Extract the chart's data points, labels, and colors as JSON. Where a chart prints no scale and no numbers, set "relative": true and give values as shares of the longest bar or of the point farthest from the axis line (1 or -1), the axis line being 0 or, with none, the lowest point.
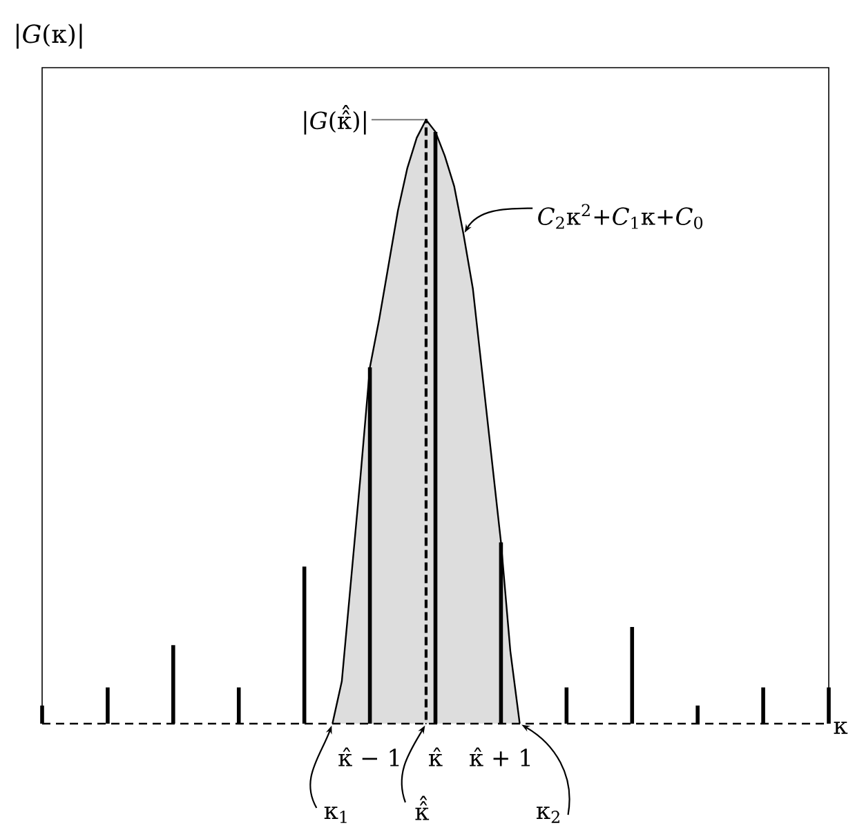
{
  "chart_data": {
    "type": "bar",
    "relative": true,
    "xlabel": "κ",
    "ylabel": "|*G*(κ)|",
    "categories": [
      null,
      null,
      null,
      null,
      null,
      null,
      null,
      null,
      null,
      null,
      null,
      null,
      null,
      null,
      null,
      null,
      null,
      null,
      null,
      null,
      null,
      null,
      null,
      null,
      null,
      null,
      null,
      null,
      null,
      null,
      null,
      null,
      null,
      null,
      null,
      "κ̂ − 1",
      null,
      null,
      null,
      null,
      null,
      null,
      "κ̂",
      null,
      null,
      null,
      null,
      null,
      null,
      "κ̂ + 1",
      null,
      null,
      null,
      null,
      null,
      null,
      null,
      null,
      null,
      null,
      null,
      null,
      null,
      null,
      null,
      null,
      null,
      null,
      null,
      null,
      null,
      null,
      null,
      null,
      null,
      null,
      null,
      null,
      null,
      null,
      null,
      null,
      null,
      null,
      null
    ],
    "series": [
      {
        "type": "area",
        "color": "#dddddd",
        "values": [
          null,
          null,
          null,
          null,
          null,
          null,
          null,
          null,
          null,
          null,
          null,
          null,
          null,
          null,
          null,
          null,
          null,
          null,
          null,
          null,
          null,
          null,
          null,
          null,
          null,
          null,
          null,
          null,
          null,
          null,
          null,
          0,
          0.07,
          0.24,
          0.41,
          0.59,
          0.67,
          0.76,
          0.85,
          0.92,
          0.97,
          1.0,
          0.98,
          0.94,
          0.89,
          0.81,
          0.72,
          0.58,
          0.44,
          0.3,
          0.12,
          0,
          null,
          null,
          null,
          null,
          null,
          null,
          null,
          null,
          null,
          null,
          null,
          null,
          null,
          null,
          null,
          null,
          null,
          null,
          null,
          null,
          null,
          null,
          null,
          null,
          null,
          null,
          null,
          null,
          null,
          null,
          null,
          null,
          null
        ]
      },
      {
        "color": "#000000",
        "values": [
          0.03,
          null,
          null,
          null,
          null,
          null,
          null,
          0.06,
          null,
          null,
          null,
          null,
          null,
          null,
          0.13,
          null,
          null,
          null,
          null,
          null,
          null,
          0.06,
          null,
          null,
          null,
          null,
          null,
          null,
          0.26,
          null,
          null,
          null,
          null,
          null,
          null,
          0.59,
          null,
          null,
          null,
          null,
          null,
          null,
          0.98,
          null,
          null,
          null,
          null,
          null,
          null,
          0.3,
          null,
          null,
          null,
          null,
          null,
          null,
          0.06,
          null,
          null,
          null,
          null,
          null,
          null,
          0.16,
          null,
          null,
          null,
          null,
          null,
          null,
          0.03,
          null,
          null,
          null,
          null,
          null,
          null,
          0.06,
          null,
          null,
          null,
          null,
          null,
          null,
          0.06
        ]
      },
      {
        "color": "#000000",
        "line_style": "dashed",
        "values": [
          null,
          null,
          null,
          null,
          null,
          null,
          null,
          null,
          null,
          null,
          null,
          null,
          null,
          null,
          null,
          null,
          null,
          null,
          null,
          null,
          null,
          null,
          null,
          null,
          null,
          null,
          null,
          null,
          null,
          null,
          null,
          null,
          null,
          null,
          null,
          null,
          null,
          null,
          null,
          null,
          null,
          1.0,
          null,
          null,
          null,
          null,
          null,
          null,
          null,
          null,
          null,
          null,
          null,
          null,
          null,
          null,
          null,
          null,
          null,
          null,
          null,
          null,
          null,
          null,
          null,
          null,
          null,
          null,
          null,
          null,
          null,
          null,
          null,
          null,
          null,
          null,
          null,
          null,
          null,
          null,
          null,
          null,
          null,
          null,
          null
        ]
      }
    ],
    "annotations": [
      "|*G*(κ̂̂)|",
      "*C*$_{2}$κ$^{2}$+*C*$_{1}$κ+*C*$_{0}$",
      "κ$_{1}$",
      "κ̂̂",
      "κ$_{2}$"
    ]
  }
}
